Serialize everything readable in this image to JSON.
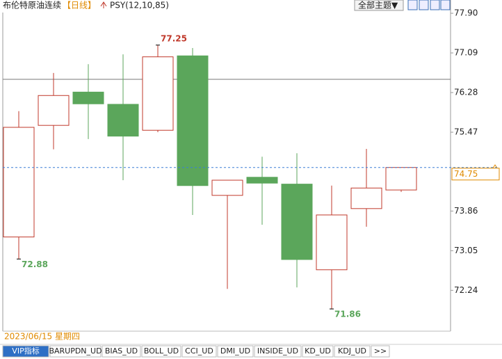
{
  "header": {
    "title": "布伦特原油连续",
    "period": "【日线】",
    "indicator": "PSY(12,10,85)",
    "theme_button": "全部主题▼"
  },
  "chart_data": {
    "type": "candlestick",
    "categories": [
      null,
      null,
      null,
      null,
      null,
      null,
      null,
      null,
      null,
      null,
      null,
      null
    ],
    "open": [
      73.33,
      75.61,
      76.29,
      76.04,
      75.51,
      77.03,
      74.18,
      74.55,
      74.41,
      72.66,
      73.91,
      74.29
    ],
    "high": [
      75.9,
      76.68,
      76.86,
      77.06,
      77.25,
      77.19,
      74.49,
      74.97,
      75.04,
      74.38,
      75.13,
      74.75
    ],
    "low": [
      72.88,
      75.12,
      75.33,
      74.49,
      75.47,
      73.78,
      72.27,
      73.58,
      72.3,
      71.86,
      73.54,
      74.25
    ],
    "close": [
      75.57,
      76.22,
      76.05,
      75.39,
      77.01,
      74.38,
      74.49,
      74.43,
      72.87,
      73.78,
      74.33,
      74.75
    ],
    "up_color": "#c0392b",
    "down_color": "#5ba65b",
    "last_price_color": "#3a7fd5",
    "ylim": [
      71.42,
      78.1
    ],
    "yticks": [
      {
        "value": 77.9,
        "label": "77.90"
      },
      77.09,
      76.28,
      75.47,
      73.86,
      73.05,
      72.24
    ]
  },
  "footer": {
    "date": "2023/06/15 星期四"
  },
  "tabs": [
    "VIP指标",
    "BARUPDN_UD",
    "BIAS_UD",
    "BOLL_UD",
    "CCI_UD",
    "DMI_UD",
    "INSIDE_UD",
    "KD_UD",
    "KDJ_UD",
    ">>"
  ]
}
